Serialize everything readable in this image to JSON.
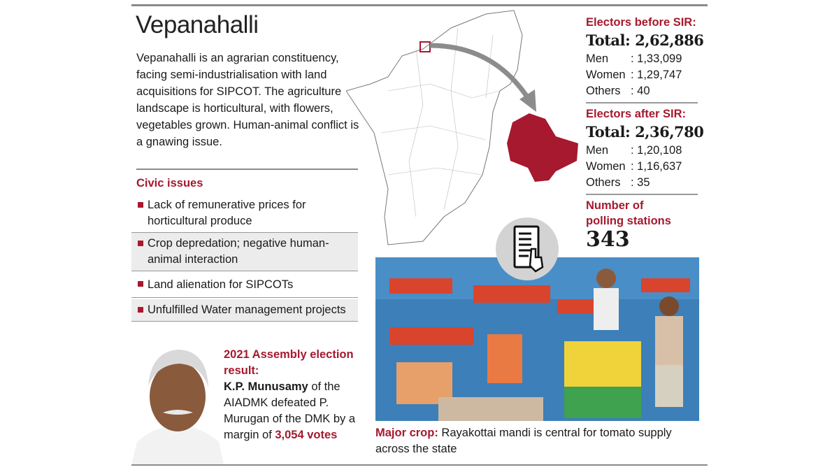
{
  "title": "Vepanahalli",
  "intro": "Vepanahalli is an agrarian constituency, facing semi-industrialisation with land acquisitions for SIPCOT.  The agriculture landscape is horticultural, with flowers, vegetables grown. Human-animal conflict is a gnawing issue.",
  "civic": {
    "heading": "Civic issues",
    "items": [
      "Lack of remunerative prices for horticultural produce",
      "Crop depredation; negative human-animal  interaction",
      "Land alienation for SIPCOTs",
      "Unfulfilled Water management projects"
    ]
  },
  "result": {
    "heading": "2021 Assembly election result:",
    "winner": "K.P. Munusamy",
    "text": " of the AIADMK defeated P. Murugan of the DMK by a margin of ",
    "margin": "3,054  votes"
  },
  "before": {
    "heading": "Electors before SIR:",
    "total": "Total: 2,62,886",
    "rows": [
      {
        "k": "Men",
        "v": ": 1,33,099"
      },
      {
        "k": "Women",
        "v": ": 1,29,747"
      },
      {
        "k": "Others",
        "v": ": 40"
      }
    ]
  },
  "after": {
    "heading": "Electors after SIR:",
    "total": "Total: 2,36,780",
    "rows": [
      {
        "k": "Men",
        "v": ": 1,20,108"
      },
      {
        "k": "Women",
        "v": ": 1,16,637"
      },
      {
        "k": "Others",
        "v": ": 35"
      }
    ]
  },
  "polling": {
    "heading": "Number of polling stations",
    "value": "343"
  },
  "caption": {
    "label": "Major crop:",
    "text": " Rayakottai mandi is central for tomato supply across the state"
  },
  "colors": {
    "accent": "#a6192e",
    "rule": "#8a8a8a"
  },
  "icons": [
    "evm-voting-machine-icon",
    "arrow-icon"
  ]
}
